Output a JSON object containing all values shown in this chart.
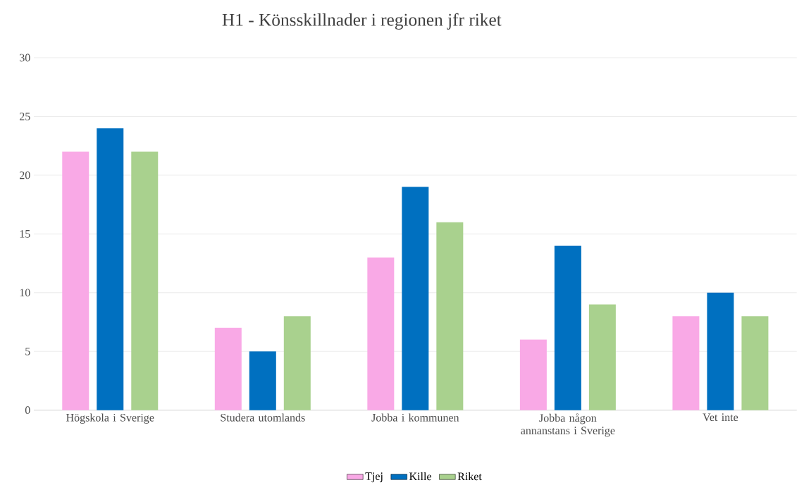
{
  "chart_data": {
    "type": "bar",
    "title": "H1 - Könsskillnader i regionen jfr riket",
    "categories": [
      "Högskola i Sverige",
      "Studera utomlands",
      "Jobba i kommunen",
      "Jobba någon annanstans i Sverige",
      "Vet inte"
    ],
    "series": [
      {
        "name": "Tjej",
        "color": "#f9a9e6",
        "values": [
          22,
          7,
          13,
          6,
          8
        ]
      },
      {
        "name": "Kille",
        "color": "#0070c0",
        "values": [
          24,
          5,
          19,
          14,
          10
        ]
      },
      {
        "name": "Riket",
        "color": "#a9d18e",
        "values": [
          22,
          8,
          16,
          9,
          8
        ]
      }
    ],
    "ylim": [
      0,
      30
    ],
    "yticks": [
      0,
      5,
      10,
      15,
      20,
      25,
      30
    ],
    "grid": "y",
    "legend": "bottom"
  }
}
